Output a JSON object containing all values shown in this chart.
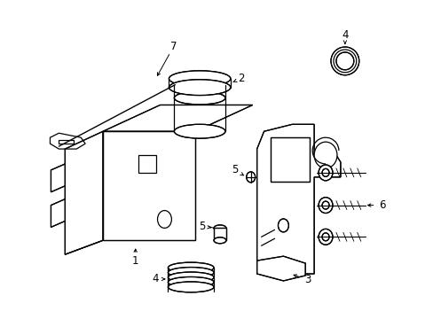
{
  "background_color": "#ffffff",
  "line_color": "#000000",
  "figure_width": 4.89,
  "figure_height": 3.6,
  "dpi": 100,
  "font_size": 8.5,
  "lw": 0.9
}
